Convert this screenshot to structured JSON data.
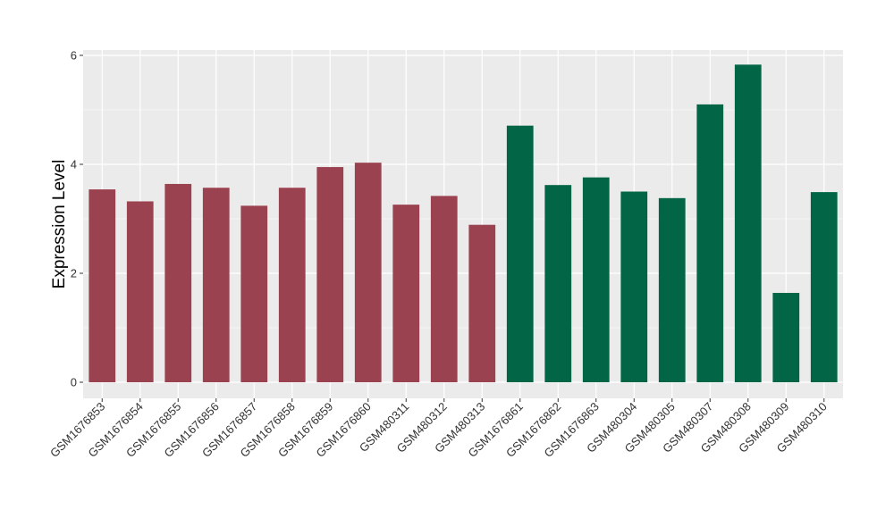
{
  "chart_data": {
    "type": "bar",
    "title": "",
    "xlabel": "",
    "ylabel": "Expression Level",
    "ylim": [
      -0.3,
      6.05
    ],
    "yticks": [
      0,
      2,
      4,
      6
    ],
    "ytick_labels": [
      "0",
      "2",
      "4",
      "6"
    ],
    "grid": true,
    "legend": "none",
    "categories": [
      "GSM1676853",
      "GSM1676854",
      "GSM1676855",
      "GSM1676856",
      "GSM1676857",
      "GSM1676858",
      "GSM1676859",
      "GSM1676860",
      "GSM480311",
      "GSM480312",
      "GSM480313",
      "GSM1676861",
      "GSM1676862",
      "GSM1676863",
      "GSM480304",
      "GSM480305",
      "GSM480307",
      "GSM480308",
      "GSM480309",
      "GSM480310"
    ],
    "values": [
      3.54,
      3.32,
      3.64,
      3.57,
      3.24,
      3.57,
      3.95,
      4.03,
      3.26,
      3.42,
      2.89,
      4.71,
      3.62,
      3.76,
      3.5,
      3.38,
      5.1,
      5.83,
      1.64,
      3.49
    ],
    "groups": [
      0,
      0,
      0,
      0,
      0,
      0,
      0,
      0,
      0,
      0,
      0,
      1,
      1,
      1,
      1,
      1,
      1,
      1,
      1,
      1
    ],
    "colors": {
      "group0": "#9b4250",
      "group1": "#026646",
      "panel": "#ebebeb",
      "grid": "#ffffff"
    }
  }
}
